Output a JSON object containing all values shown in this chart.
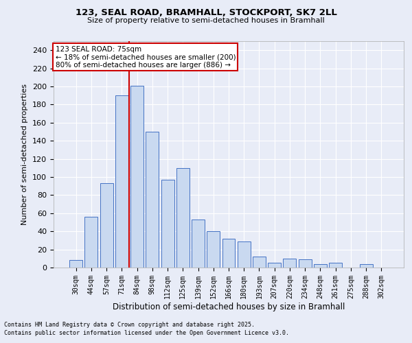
{
  "title_line1": "123, SEAL ROAD, BRAMHALL, STOCKPORT, SK7 2LL",
  "title_line2": "Size of property relative to semi-detached houses in Bramhall",
  "xlabel": "Distribution of semi-detached houses by size in Bramhall",
  "ylabel": "Number of semi-detached properties",
  "footnote_line1": "Contains HM Land Registry data © Crown copyright and database right 2025.",
  "footnote_line2": "Contains public sector information licensed under the Open Government Licence v3.0.",
  "bin_labels": [
    "30sqm",
    "44sqm",
    "57sqm",
    "71sqm",
    "84sqm",
    "98sqm",
    "112sqm",
    "125sqm",
    "139sqm",
    "152sqm",
    "166sqm",
    "180sqm",
    "193sqm",
    "207sqm",
    "220sqm",
    "234sqm",
    "248sqm",
    "261sqm",
    "275sqm",
    "288sqm",
    "302sqm"
  ],
  "bar_values": [
    8,
    56,
    93,
    190,
    201,
    150,
    97,
    110,
    53,
    40,
    32,
    29,
    12,
    5,
    10,
    9,
    4,
    5,
    0,
    4,
    0
  ],
  "bar_color": "#c9d9f0",
  "bar_edge_color": "#4472c4",
  "background_color": "#e8ecf7",
  "grid_color": "#ffffff",
  "vline_color": "#cc0000",
  "annotation_title": "123 SEAL ROAD: 75sqm",
  "annotation_line1": "← 18% of semi-detached houses are smaller (200)",
  "annotation_line2": "80% of semi-detached houses are larger (886) →",
  "annotation_box_color": "#ffffff",
  "annotation_box_edge": "#cc0000",
  "ylim": [
    0,
    250
  ],
  "yticks": [
    0,
    20,
    40,
    60,
    80,
    100,
    120,
    140,
    160,
    180,
    200,
    220,
    240
  ]
}
